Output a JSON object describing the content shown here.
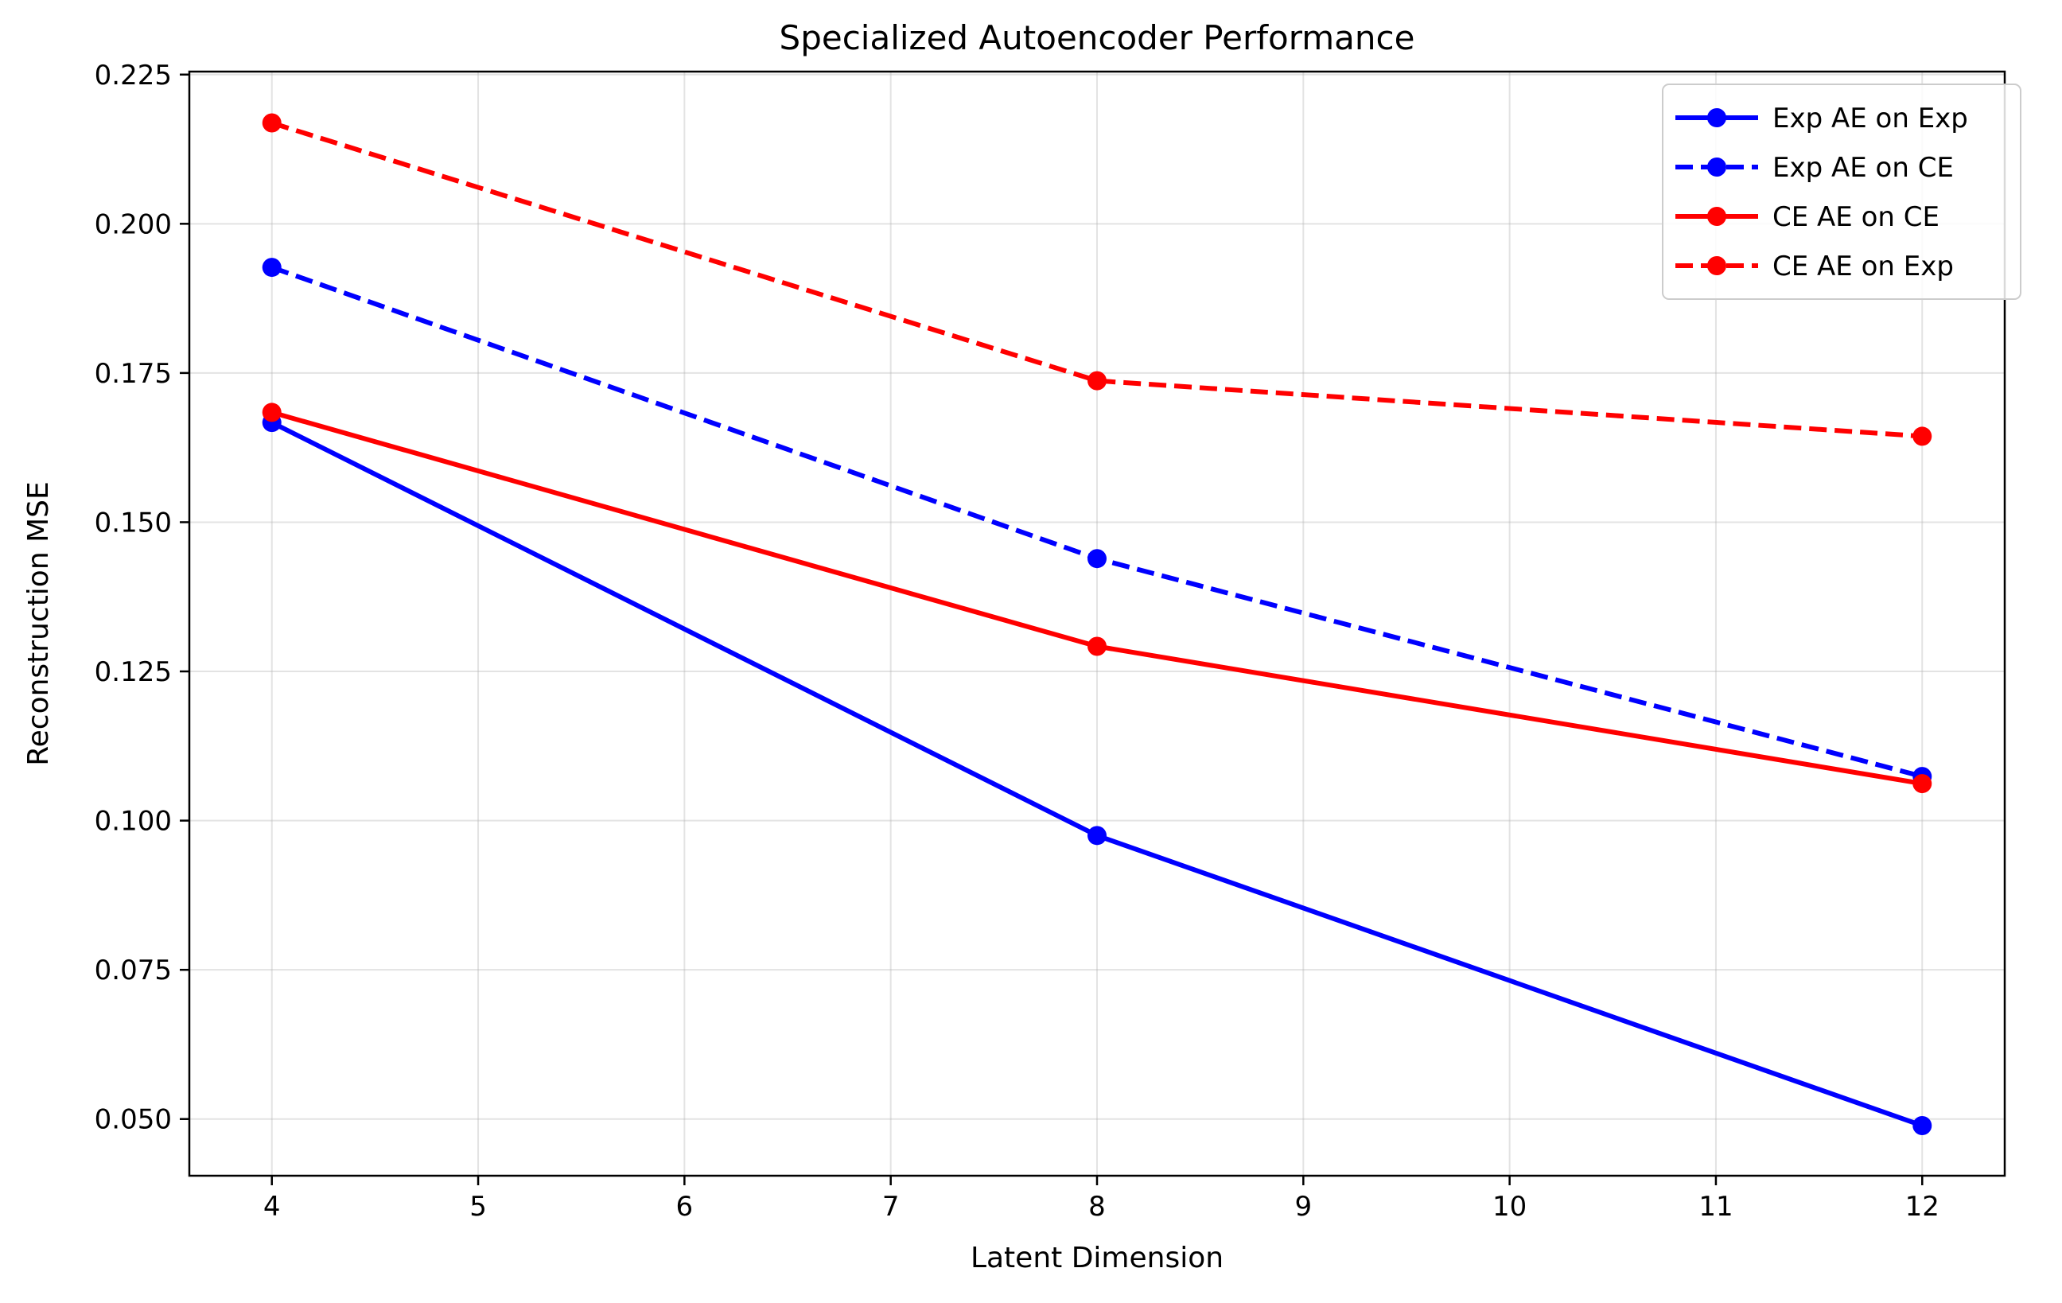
{
  "chart_data": {
    "type": "line",
    "title": "Specialized Autoencoder Performance",
    "xlabel": "Latent Dimension",
    "ylabel": "Reconstruction MSE",
    "xlim": [
      3.6,
      12.4
    ],
    "ylim": [
      0.0405,
      0.2255
    ],
    "xticks": [
      4,
      5,
      6,
      7,
      8,
      9,
      10,
      11,
      12
    ],
    "xtick_labels": [
      "4",
      "5",
      "6",
      "7",
      "8",
      "9",
      "10",
      "11",
      "12"
    ],
    "yticks": [
      0.05,
      0.075,
      0.1,
      0.125,
      0.15,
      0.175,
      0.2,
      0.225
    ],
    "ytick_labels": [
      "0.050",
      "0.075",
      "0.100",
      "0.125",
      "0.150",
      "0.175",
      "0.200",
      "0.225"
    ],
    "grid": true,
    "legend_position": "top-right",
    "x": [
      4,
      8,
      12
    ],
    "series": [
      {
        "name": "Exp AE on Exp",
        "values": [
          0.1667,
          0.0975,
          0.0489
        ],
        "color": "#0000ff",
        "linestyle": "solid",
        "marker": "circle"
      },
      {
        "name": "Exp AE on CE",
        "values": [
          0.1927,
          0.1439,
          0.1074
        ],
        "color": "#0000ff",
        "linestyle": "dashed",
        "marker": "circle"
      },
      {
        "name": "CE AE on CE",
        "values": [
          0.1684,
          0.1292,
          0.1062
        ],
        "color": "#ff0000",
        "linestyle": "solid",
        "marker": "circle"
      },
      {
        "name": "CE AE on Exp",
        "values": [
          0.2169,
          0.1737,
          0.1644
        ],
        "color": "#ff0000",
        "linestyle": "dashed",
        "marker": "circle"
      }
    ]
  }
}
